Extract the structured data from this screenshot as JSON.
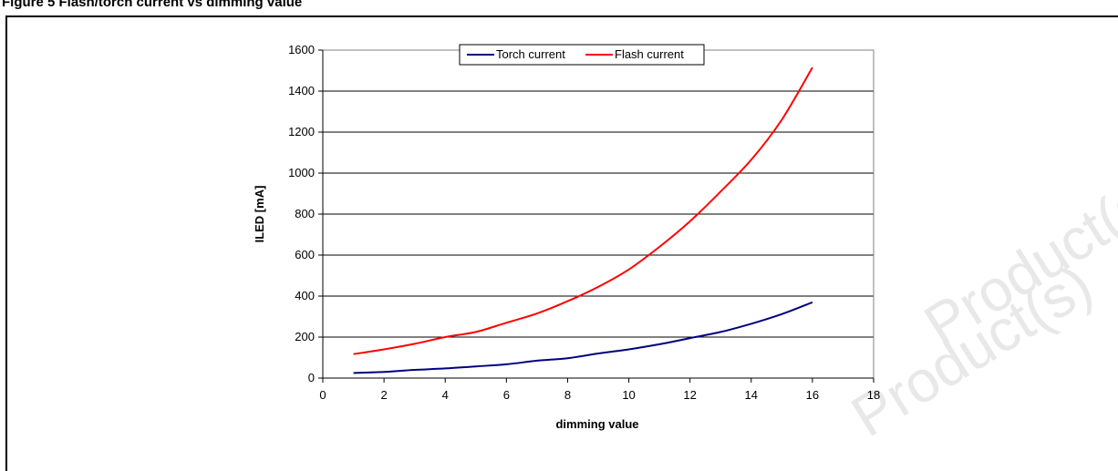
{
  "caption": "Figure 5 Flash/torch current vs dimming value",
  "watermark": {
    "line1": "Product(s)",
    "line2": "Product(s)"
  },
  "colors": {
    "torch": "#000080",
    "flash": "#ff0000",
    "grid": "#000000"
  },
  "chart_data": {
    "type": "line",
    "title": "",
    "xlabel": "dimming value",
    "ylabel": "ILED [mA]",
    "xlim": [
      0,
      18
    ],
    "ylim": [
      0,
      1600
    ],
    "x_ticks": [
      0,
      2,
      4,
      6,
      8,
      10,
      12,
      14,
      16,
      18
    ],
    "y_ticks": [
      0,
      200,
      400,
      600,
      800,
      1000,
      1200,
      1400,
      1600
    ],
    "grid": "horizontal",
    "legend_position": "top-center",
    "series": [
      {
        "name": "Torch current",
        "color": "#000080",
        "x": [
          1,
          2,
          3,
          4,
          5,
          6,
          7,
          8,
          9,
          10,
          11,
          12,
          13,
          14,
          15,
          16
        ],
        "y": [
          25,
          30,
          40,
          47,
          57,
          67,
          85,
          97,
          120,
          140,
          165,
          195,
          225,
          265,
          312,
          370
        ]
      },
      {
        "name": "Flash current",
        "color": "#ff0000",
        "x": [
          1,
          2,
          3,
          4,
          5,
          6,
          7,
          8,
          9,
          10,
          11,
          12,
          13,
          14,
          15,
          16
        ],
        "y": [
          117,
          140,
          167,
          200,
          225,
          270,
          315,
          375,
          445,
          530,
          640,
          765,
          910,
          1065,
          1260,
          1515
        ]
      }
    ]
  }
}
